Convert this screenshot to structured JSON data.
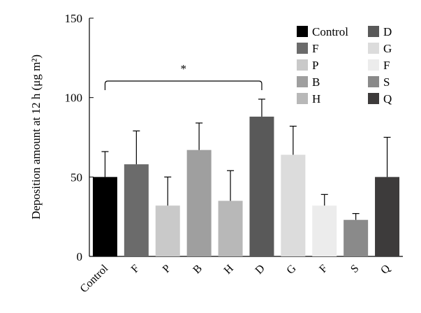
{
  "chart_data": {
    "type": "bar",
    "title": "",
    "xlabel": "",
    "ylabel": "Deposition amount at 12 h (μg m²)",
    "ylim": [
      0,
      150
    ],
    "yticks": [
      0,
      50,
      100,
      150
    ],
    "grid": false,
    "legend_position": "top-right",
    "categories": [
      "Control",
      "F",
      "P",
      "B",
      "H",
      "D",
      "G",
      "F",
      "S",
      "Q"
    ],
    "values": [
      50,
      58,
      32,
      67,
      35,
      88,
      64,
      32,
      23,
      50
    ],
    "errors": [
      16,
      21,
      18,
      17,
      19,
      11,
      18,
      7,
      4,
      25
    ],
    "colors": [
      "#000000",
      "#6b6b6b",
      "#c9c9c9",
      "#9f9f9f",
      "#b8b8b8",
      "#595959",
      "#dcdcdc",
      "#ececec",
      "#8a8a8a",
      "#3d3b3b"
    ],
    "legend": [
      "Control",
      "F",
      "P",
      "B",
      "H",
      "D",
      "G",
      "F",
      "S",
      "Q"
    ],
    "significance": {
      "from": 0,
      "to": 5,
      "label": "*"
    }
  }
}
